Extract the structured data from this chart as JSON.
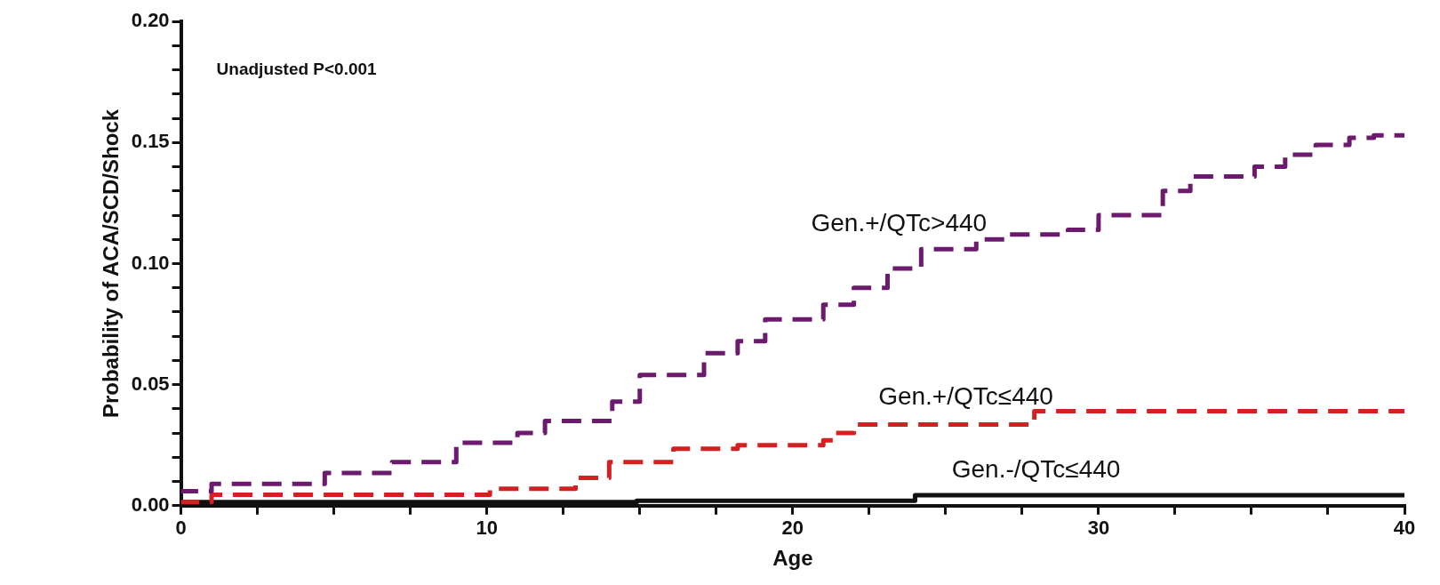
{
  "chart_data": {
    "type": "step",
    "xlabel": "Age",
    "ylabel": "Probability of ACA/SCD/Shock",
    "annotations": [
      "Unadjusted P<0.001"
    ],
    "xlim": [
      0,
      40
    ],
    "ylim": [
      0,
      0.2
    ],
    "xticks": [
      0,
      {
        "value": 2.5,
        "label": null
      },
      {
        "value": 5,
        "label": null
      },
      {
        "value": 7.5,
        "label": null
      },
      10,
      {
        "value": 12.5,
        "label": null
      },
      {
        "value": 15,
        "label": null
      },
      {
        "value": 17.5,
        "label": null
      },
      20,
      {
        "value": 22.5,
        "label": null
      },
      {
        "value": 25,
        "label": null
      },
      {
        "value": 27.5,
        "label": null
      },
      30,
      {
        "value": 32.5,
        "label": null
      },
      {
        "value": 35,
        "label": null
      },
      {
        "value": 37.5,
        "label": null
      },
      40
    ],
    "yticks": [
      {
        "value": 0,
        "label": "0.00"
      },
      {
        "value": 0.01,
        "label": null
      },
      {
        "value": 0.02,
        "label": null
      },
      {
        "value": 0.03,
        "label": null
      },
      {
        "value": 0.04,
        "label": null
      },
      {
        "value": 0.05,
        "label": "0.05"
      },
      {
        "value": 0.06,
        "label": null
      },
      {
        "value": 0.07,
        "label": null
      },
      {
        "value": 0.08,
        "label": null
      },
      {
        "value": 0.09,
        "label": null
      },
      {
        "value": 0.1,
        "label": "0.10"
      },
      {
        "value": 0.11,
        "label": null
      },
      {
        "value": 0.12,
        "label": null
      },
      {
        "value": 0.13,
        "label": null
      },
      {
        "value": 0.14,
        "label": null
      },
      {
        "value": 0.15,
        "label": "0.15"
      },
      {
        "value": 0.16,
        "label": null
      },
      {
        "value": 0.17,
        "label": null
      },
      {
        "value": 0.18,
        "label": null
      },
      {
        "value": 0.19,
        "label": null
      },
      {
        "value": 0.2,
        "label": "0.20"
      }
    ],
    "legend": false,
    "series": [
      {
        "name": "Gen.+/QTc>440",
        "color": "#6b1a6e",
        "line_style": "dashed",
        "x": [
          0,
          1,
          4.7,
          6.9,
          9,
          11,
          11.9,
          14.1,
          15,
          17.1,
          18.2,
          19.1,
          21,
          22,
          23.1,
          24.2,
          26,
          27.1,
          29,
          30,
          32.1,
          33,
          35.1,
          36.1,
          37.1,
          38.2,
          39,
          40
        ],
        "values": [
          0.005,
          0.006,
          0.009,
          0.0135,
          0.018,
          0.026,
          0.03,
          0.035,
          0.043,
          0.054,
          0.063,
          0.068,
          0.077,
          0.083,
          0.09,
          0.098,
          0.106,
          0.11,
          0.112,
          0.114,
          0.12,
          0.13,
          0.136,
          0.14,
          0.145,
          0.149,
          0.152,
          0.153
        ]
      },
      {
        "name": "Gen.+/QTc≤440",
        "color": "#d42020",
        "line_style": "dashed",
        "x": [
          0,
          1,
          10.1,
          12.9,
          14,
          16.1,
          18.2,
          21,
          21.4,
          22,
          27.9,
          35.2,
          40
        ],
        "values": [
          0.001,
          0.0015,
          0.0045,
          0.007,
          0.0115,
          0.018,
          0.0235,
          0.025,
          0.027,
          0.03,
          0.0335,
          0.039,
          0.039
        ]
      },
      {
        "name": "Gen.-/QTc≤440",
        "color": "#111111",
        "line_style": "solid",
        "x": [
          0,
          14.9,
          24,
          37,
          40
        ],
        "values": [
          0.001,
          0.0015,
          0.002,
          0.0043,
          0.0043
        ]
      }
    ]
  }
}
